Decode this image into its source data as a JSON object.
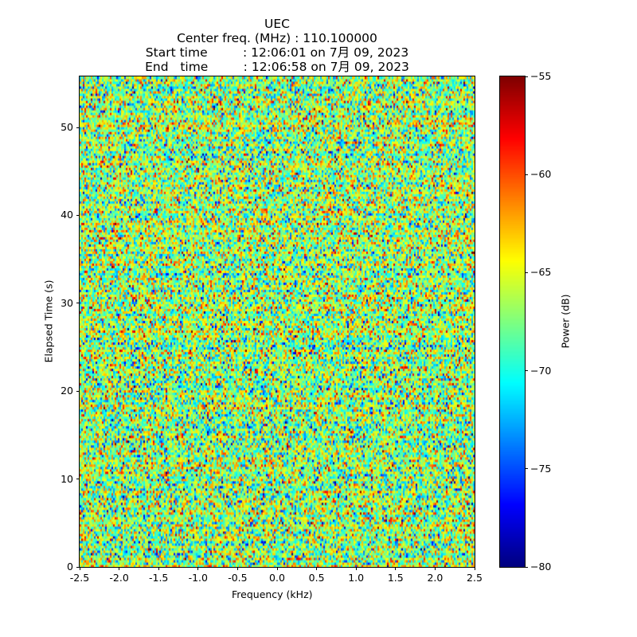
{
  "title_lines": [
    "UEC",
    "Center freq. (MHz) : 110.100000",
    "Start time         : 12:06:01 on 7月 09, 2023",
    "End   time         : 12:06:58 on 7月 09, 2023"
  ],
  "chart_data": {
    "type": "heatmap",
    "title": "UEC / Center freq. (MHz) : 110.100000",
    "xlabel": "Frequency (kHz)",
    "ylabel": "Elapsed Time (s)",
    "xlim": [
      -2.5,
      2.5
    ],
    "ylim": [
      0,
      55.8
    ],
    "xticks": [
      "-2.5",
      "-2.0",
      "-1.5",
      "-1.0",
      "-0.5",
      "0.0",
      "0.5",
      "1.0",
      "1.5",
      "2.0",
      "2.5"
    ],
    "yticks": [
      "0",
      "10",
      "20",
      "30",
      "40",
      "50"
    ],
    "colormap": "jet",
    "colorbar": {
      "label": "Power (dB)",
      "range": [
        -80,
        -55
      ],
      "ticks": [
        "−55",
        "−60",
        "−65",
        "−70",
        "−75",
        "−80"
      ]
    },
    "grid_shape": [
      205,
      248
    ],
    "value_summary": {
      "mean_db": -67,
      "std_db": 4
    }
  }
}
